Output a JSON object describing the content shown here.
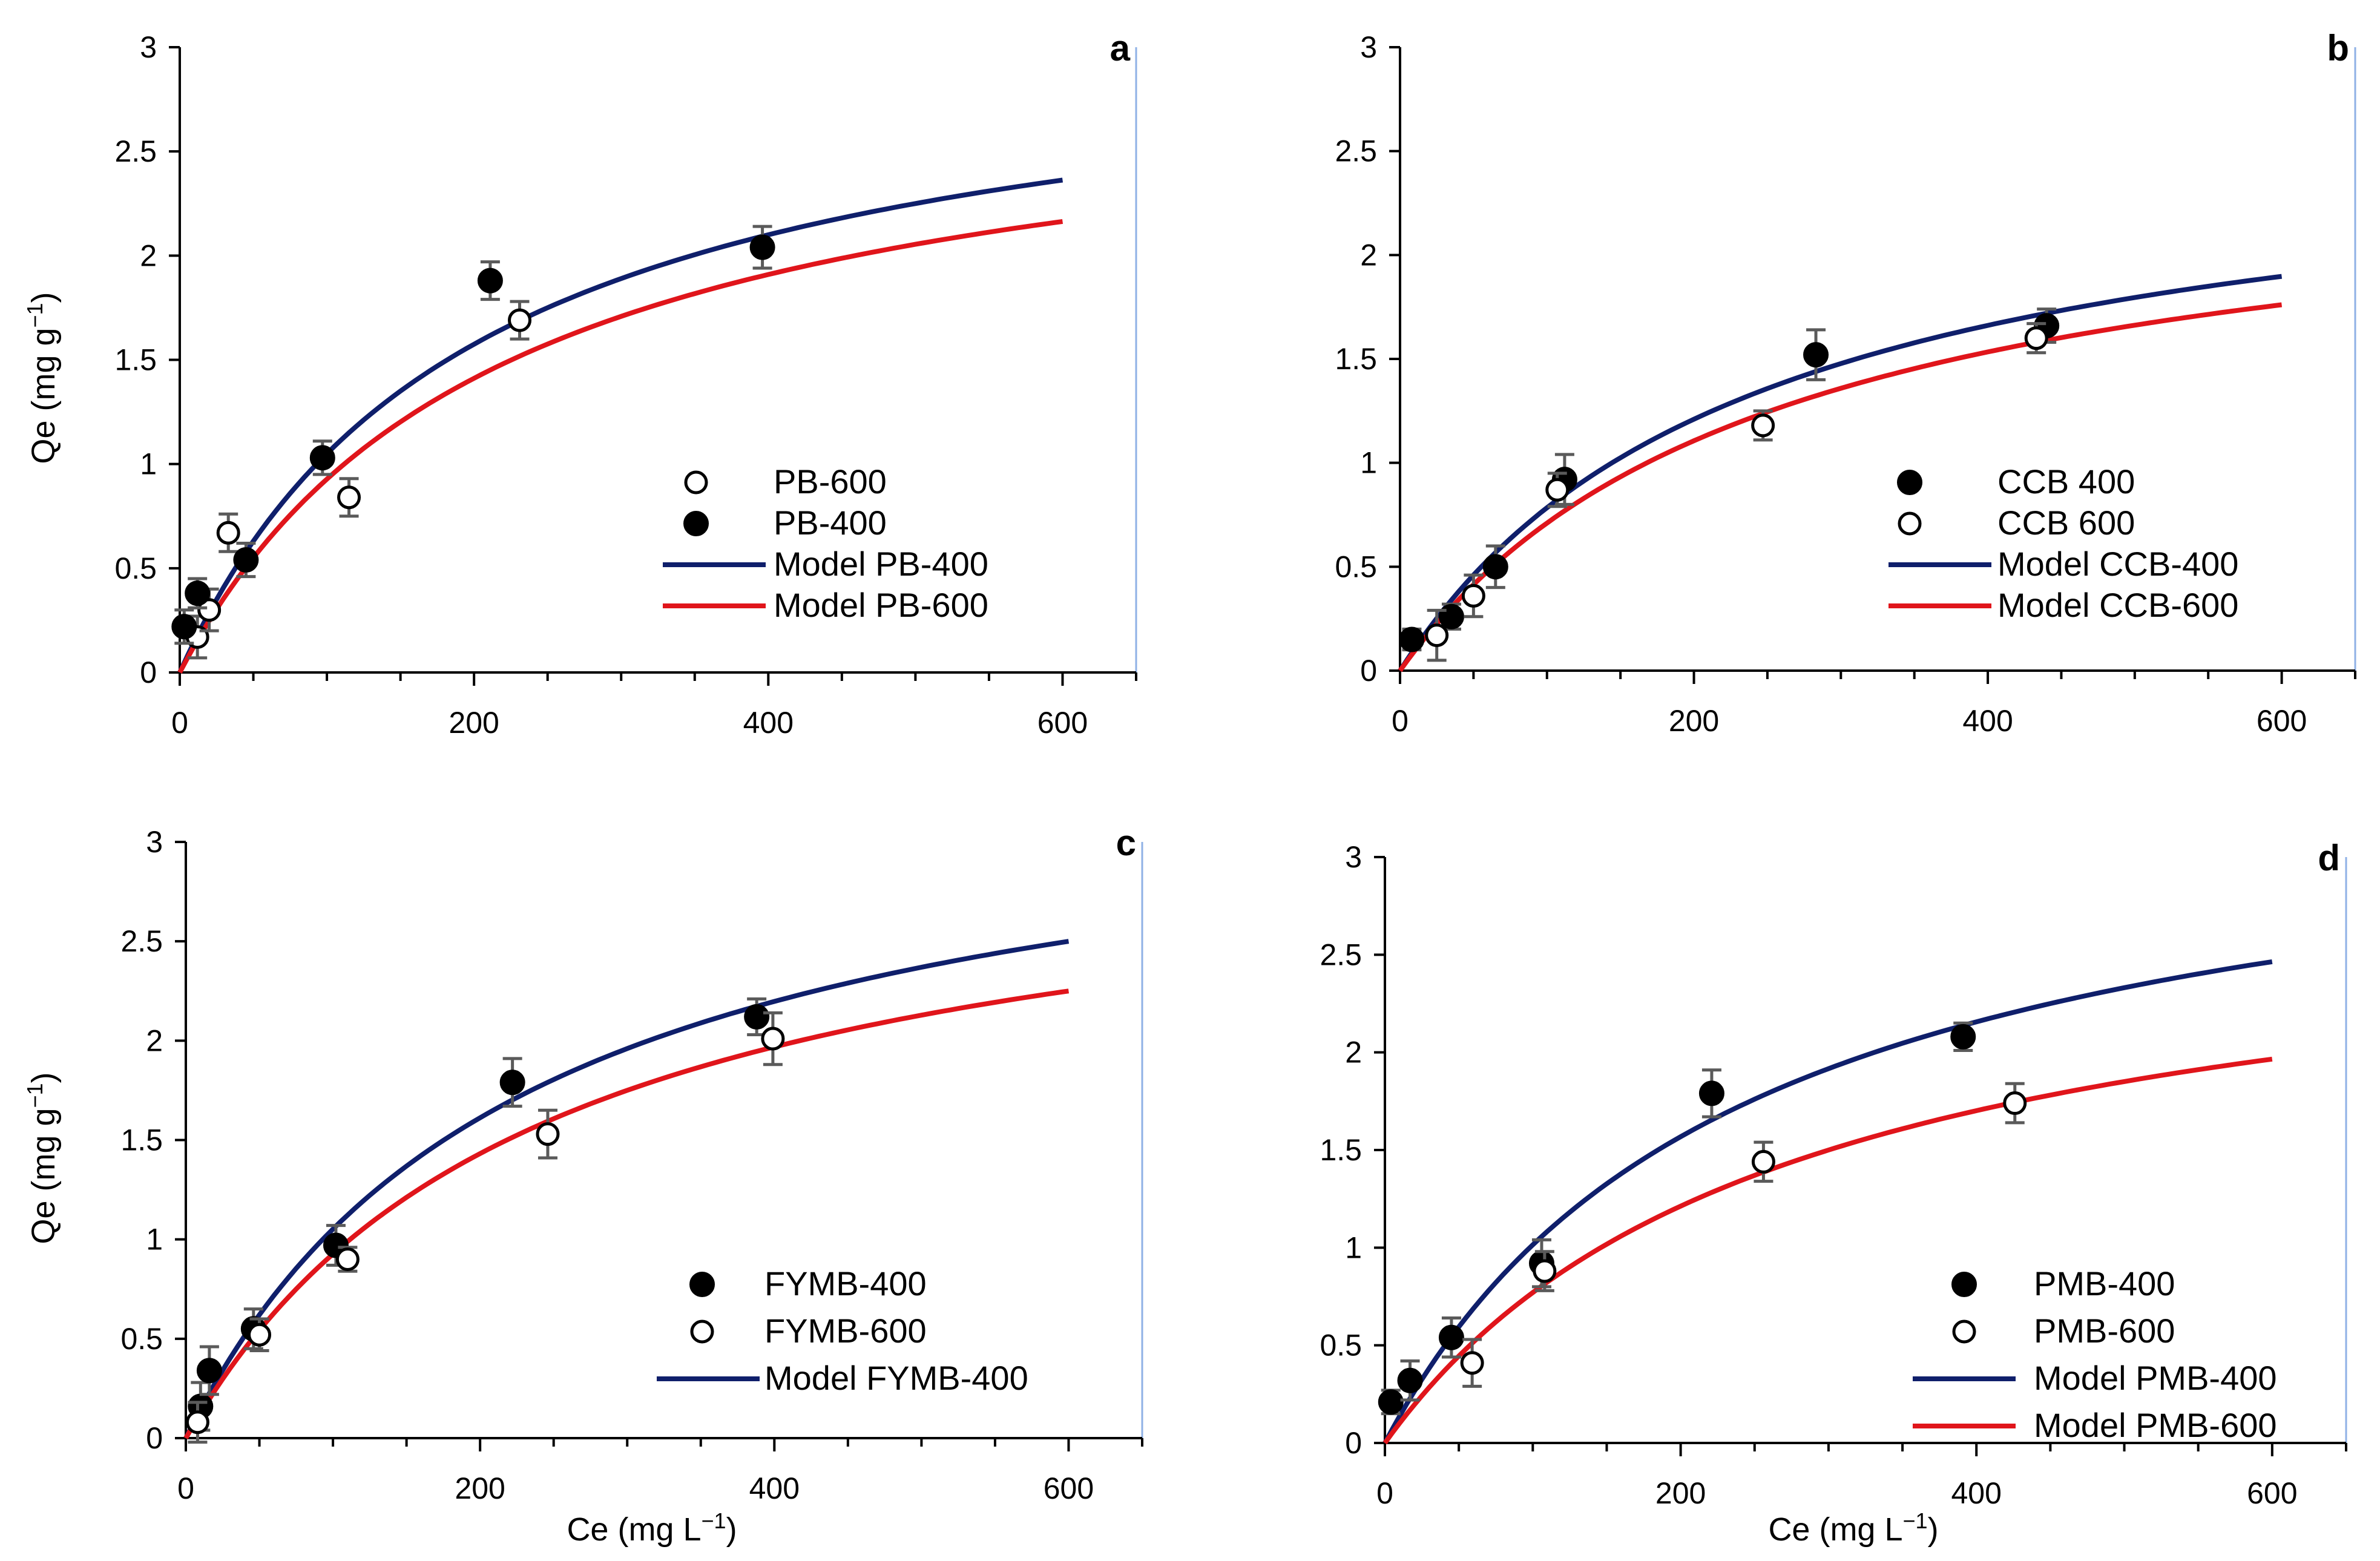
{
  "figure": {
    "x_label_main": "Ce (mg L",
    "x_label_sup": "−1",
    "x_label_end": ")",
    "y_label_main": "Qe (mg g",
    "y_label_sup": "−1",
    "y_label_end": ")"
  },
  "colors": {
    "model_400": "#0f1f6b",
    "model_600": "#e0151b",
    "error_bar": "#5a5a5a",
    "frame_edge": "#8fb1e6"
  },
  "chart_data": [
    {
      "panel": "a",
      "type": "scatter",
      "xlim": [
        0,
        650
      ],
      "ylim": [
        0,
        3
      ],
      "x_ticks": [
        0,
        200,
        400,
        600
      ],
      "y_ticks": [
        0,
        0.5,
        1,
        1.5,
        2,
        2.5,
        3
      ],
      "x_tick_labels": [
        "0",
        "200",
        "400",
        "600"
      ],
      "y_tick_labels": [
        "0",
        "0.5",
        "1",
        "1.5",
        "2",
        "2.5",
        "3"
      ],
      "show_x_label": false,
      "show_y_label": true,
      "series": [
        {
          "name": "PB-600",
          "marker": "open",
          "points": [
            [
              12,
              0.17
            ],
            [
              20,
              0.3
            ],
            [
              33,
              0.67
            ],
            [
              115,
              0.84
            ],
            [
              231,
              1.69
            ]
          ],
          "errors": [
            0.1,
            0.1,
            0.09,
            0.09,
            0.09
          ]
        },
        {
          "name": "PB-400",
          "marker": "filled",
          "points": [
            [
              3,
              0.22
            ],
            [
              12,
              0.38
            ],
            [
              45,
              0.54
            ],
            [
              97,
              1.03
            ],
            [
              211,
              1.88
            ],
            [
              396,
              2.04
            ]
          ],
          "errors": [
            0.08,
            0.07,
            0.08,
            0.08,
            0.09,
            0.1
          ]
        }
      ],
      "models": [
        {
          "name": "Model PB-400",
          "color_key": "model_400",
          "qmax": 3.15,
          "k": 200,
          "x_max": 600
        },
        {
          "name": "Model PB-600",
          "color_key": "model_600",
          "qmax": 2.95,
          "k": 218,
          "x_max": 600
        }
      ],
      "legend": [
        "PB-600",
        "PB-400",
        "Model PB-400",
        "Model PB-600"
      ],
      "legend_position": "center-right"
    },
    {
      "panel": "b",
      "type": "scatter",
      "xlim": [
        0,
        650
      ],
      "ylim": [
        0,
        3
      ],
      "x_ticks": [
        0,
        200,
        400,
        600
      ],
      "y_ticks": [
        0,
        0.5,
        1,
        1.5,
        2,
        2.5,
        3
      ],
      "x_tick_labels": [
        "0",
        "200",
        "400",
        "600"
      ],
      "y_tick_labels": [
        "0",
        "0.5",
        "1",
        "1.5",
        "2",
        "2.5",
        "3"
      ],
      "show_x_label": false,
      "show_y_label": false,
      "series": [
        {
          "name": "CCB 400",
          "marker": "filled",
          "points": [
            [
              8,
              0.15
            ],
            [
              35,
              0.26
            ],
            [
              65,
              0.5
            ],
            [
              112,
              0.92
            ],
            [
              283,
              1.52
            ],
            [
              440,
              1.66
            ]
          ],
          "errors": [
            0.05,
            0.06,
            0.1,
            0.12,
            0.12,
            0.08
          ]
        },
        {
          "name": "CCB 600",
          "marker": "open",
          "points": [
            [
              25,
              0.17
            ],
            [
              50,
              0.36
            ],
            [
              107,
              0.87
            ],
            [
              247,
              1.18
            ],
            [
              433,
              1.6
            ]
          ],
          "errors": [
            0.12,
            0.1,
            0.08,
            0.07,
            0.07
          ]
        }
      ],
      "models": [
        {
          "name": "Model CCB-400",
          "color_key": "model_400",
          "qmax": 2.65,
          "k": 238,
          "x_max": 600
        },
        {
          "name": "Model CCB-600",
          "color_key": "model_600",
          "qmax": 2.5,
          "k": 252,
          "x_max": 600
        }
      ],
      "legend": [
        "CCB 400",
        "CCB 600",
        "Model CCB-400",
        "Model CCB-600"
      ],
      "legend_position": "center-right"
    },
    {
      "panel": "c",
      "type": "scatter",
      "xlim": [
        0,
        650
      ],
      "ylim": [
        0,
        3
      ],
      "x_ticks": [
        0,
        200,
        400,
        600
      ],
      "y_ticks": [
        0,
        0.5,
        1,
        1.5,
        2,
        2.5,
        3
      ],
      "x_tick_labels": [
        "0",
        "200",
        "400",
        "600"
      ],
      "y_tick_labels": [
        "0",
        "0.5",
        "1",
        "1.5",
        "2",
        "2.5",
        "3"
      ],
      "show_x_label": true,
      "show_y_label": true,
      "series": [
        {
          "name": "FYMB-400",
          "marker": "filled",
          "points": [
            [
              10,
              0.16
            ],
            [
              16,
              0.34
            ],
            [
              46,
              0.55
            ],
            [
              102,
              0.97
            ],
            [
              222,
              1.79
            ],
            [
              388,
              2.12
            ]
          ],
          "errors": [
            0.12,
            0.12,
            0.1,
            0.1,
            0.12,
            0.09
          ]
        },
        {
          "name": "FYMB-600",
          "marker": "open",
          "points": [
            [
              8,
              0.08
            ],
            [
              50,
              0.52
            ],
            [
              110,
              0.9
            ],
            [
              246,
              1.53
            ],
            [
              399,
              2.01
            ]
          ],
          "errors": [
            0.1,
            0.08,
            0.06,
            0.12,
            0.13
          ]
        }
      ],
      "models": [
        {
          "name": "Model FYMB-400",
          "color_key": "model_400",
          "qmax": 3.45,
          "k": 228,
          "x_max": 600
        },
        {
          "name": "Model FYMB-600",
          "color_key": "model_600",
          "qmax": 3.15,
          "k": 240,
          "x_max": 600
        }
      ],
      "legend": [
        "FYMB-400",
        "FYMB-600",
        "Model FYMB-400"
      ],
      "legend_position": "bottom-right"
    },
    {
      "panel": "d",
      "type": "scatter",
      "xlim": [
        0,
        650
      ],
      "ylim": [
        0,
        3
      ],
      "x_ticks": [
        0,
        200,
        400,
        600
      ],
      "y_ticks": [
        0,
        0.5,
        1,
        1.5,
        2,
        2.5,
        3
      ],
      "x_tick_labels": [
        "0",
        "200",
        "400",
        "600"
      ],
      "y_tick_labels": [
        "0",
        "0.5",
        "1",
        "1.5",
        "2",
        "2.5",
        "3"
      ],
      "show_x_label": true,
      "show_y_label": false,
      "series": [
        {
          "name": "PMB-400",
          "marker": "filled",
          "points": [
            [
              4,
              0.21
            ],
            [
              17,
              0.32
            ],
            [
              45,
              0.54
            ],
            [
              106,
              0.92
            ],
            [
              221,
              1.79
            ],
            [
              391,
              2.08
            ]
          ],
          "errors": [
            0.06,
            0.1,
            0.1,
            0.12,
            0.12,
            0.07
          ]
        },
        {
          "name": "PMB-600",
          "marker": "open",
          "points": [
            [
              108,
              0.88
            ],
            [
              59,
              0.41
            ],
            [
              256,
              1.44
            ],
            [
              426,
              1.74
            ]
          ],
          "errors": [
            0.1,
            0.12,
            0.1,
            0.1
          ]
        }
      ],
      "models": [
        {
          "name": "Model PMB-400",
          "color_key": "model_400",
          "qmax": 3.45,
          "k": 240,
          "x_max": 600
        },
        {
          "name": "Model PMB-600",
          "color_key": "model_600",
          "qmax": 2.85,
          "k": 270,
          "x_max": 600
        }
      ],
      "legend": [
        "PMB-400",
        "PMB-600",
        "Model PMB-400",
        "Model PMB-600"
      ],
      "legend_position": "bottom-right"
    }
  ]
}
